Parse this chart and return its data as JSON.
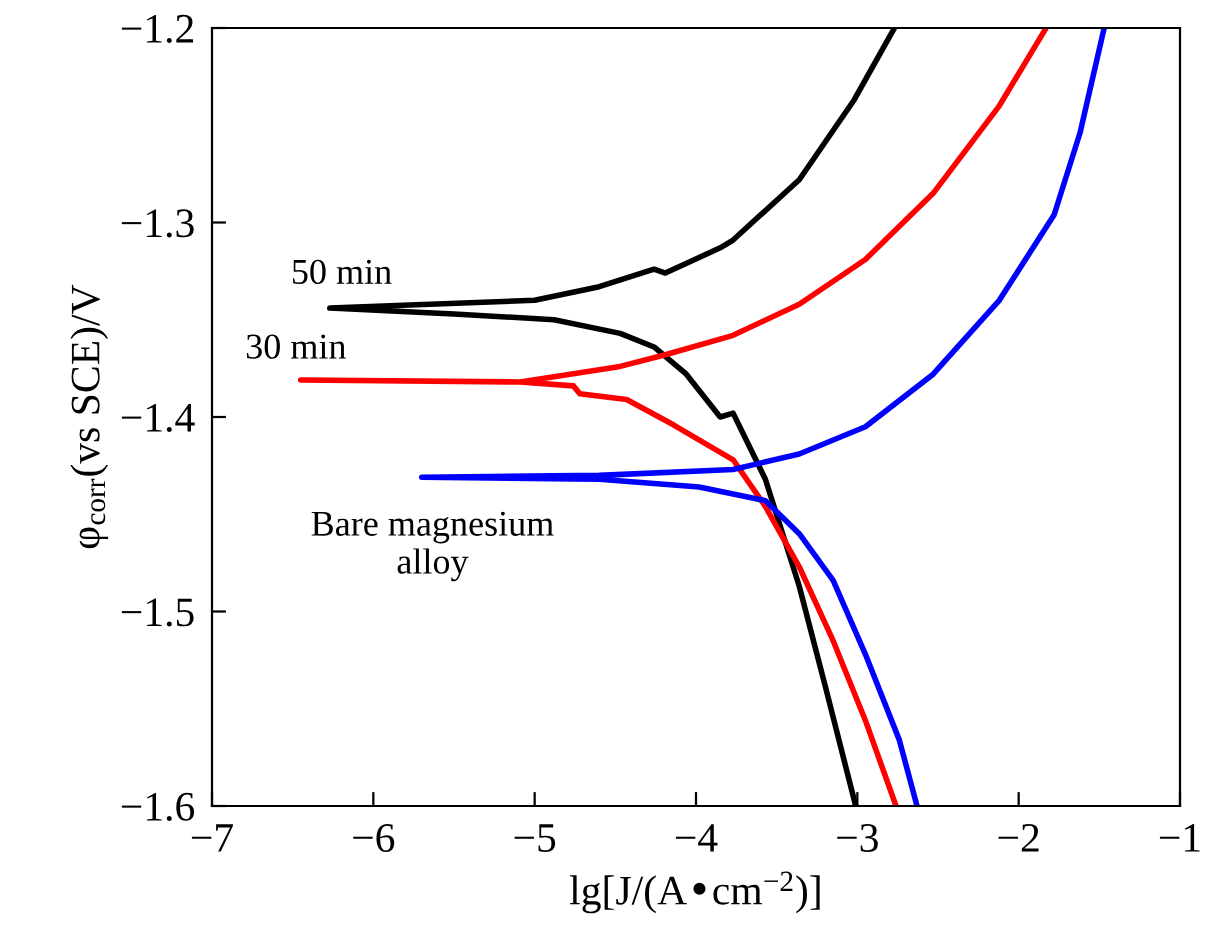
{
  "chart_data": {
    "type": "line",
    "xlabel": "lg[J/(A•cm$^{−2}$)]",
    "ylabel": "φ$_{corr}$(vs SCE)/V",
    "xlim": [
      -7,
      -1
    ],
    "ylim": [
      -1.6,
      -1.2
    ],
    "xticks": [
      {
        "value": -7,
        "label": "−7"
      },
      {
        "value": -6,
        "label": "−6"
      },
      {
        "value": -5,
        "label": "−5"
      },
      {
        "value": -4,
        "label": "−4"
      },
      {
        "value": -3,
        "label": "−3"
      },
      {
        "value": -2,
        "label": "−2"
      },
      {
        "value": -1,
        "label": "−1"
      }
    ],
    "yticks": [
      {
        "value": -1.6,
        "label": "−1.6"
      },
      {
        "value": -1.5,
        "label": "−1.5"
      },
      {
        "value": -1.4,
        "label": "−1.4"
      },
      {
        "value": -1.3,
        "label": "−1.3"
      },
      {
        "value": -1.2,
        "label": "−1.2"
      }
    ],
    "grid": false,
    "legend": false,
    "marker": "none",
    "line_style": "solid",
    "series": [
      {
        "name": "50 min",
        "color": "#000000",
        "x": [
          -3.01,
          -3.2,
          -3.36,
          -3.57,
          -3.77,
          -3.85,
          -4.06,
          -4.26,
          -4.47,
          -4.88,
          -5.5,
          -6.27,
          -5.0,
          -4.6,
          -4.26,
          -4.19,
          -3.85,
          -3.77,
          -3.36,
          -3.02,
          -2.77
        ],
        "values": [
          -1.6,
          -1.538,
          -1.487,
          -1.432,
          -1.398,
          -1.4,
          -1.378,
          -1.364,
          -1.357,
          -1.35,
          -1.347,
          -1.344,
          -1.34,
          -1.333,
          -1.324,
          -1.326,
          -1.313,
          -1.309,
          -1.278,
          -1.237,
          -1.2
        ]
      },
      {
        "name": "30 min",
        "color": "#ff0000",
        "x": [
          -2.76,
          -2.95,
          -3.15,
          -3.36,
          -3.57,
          -3.77,
          -4.14,
          -4.43,
          -4.72,
          -4.76,
          -5.09,
          -6.45,
          -5.09,
          -4.47,
          -4.19,
          -3.77,
          -3.36,
          -2.95,
          -2.53,
          -2.12,
          -1.83
        ],
        "values": [
          -1.6,
          -1.556,
          -1.515,
          -1.477,
          -1.446,
          -1.422,
          -1.404,
          -1.391,
          -1.388,
          -1.384,
          -1.382,
          -1.381,
          -1.382,
          -1.374,
          -1.368,
          -1.358,
          -1.342,
          -1.319,
          -1.285,
          -1.24,
          -1.2
        ]
      },
      {
        "name": "Bare magnesium\nalloy",
        "color": "#0000ff",
        "x": [
          -2.63,
          -2.74,
          -2.95,
          -3.15,
          -3.36,
          -3.57,
          -3.98,
          -4.6,
          -5.7,
          -4.6,
          -3.77,
          -3.36,
          -2.95,
          -2.53,
          -2.12,
          -1.78,
          -1.62,
          -1.47
        ],
        "values": [
          -1.6,
          -1.566,
          -1.522,
          -1.484,
          -1.46,
          -1.443,
          -1.436,
          -1.432,
          -1.431,
          -1.43,
          -1.427,
          -1.419,
          -1.405,
          -1.378,
          -1.34,
          -1.296,
          -1.254,
          -1.2
        ]
      }
    ]
  }
}
